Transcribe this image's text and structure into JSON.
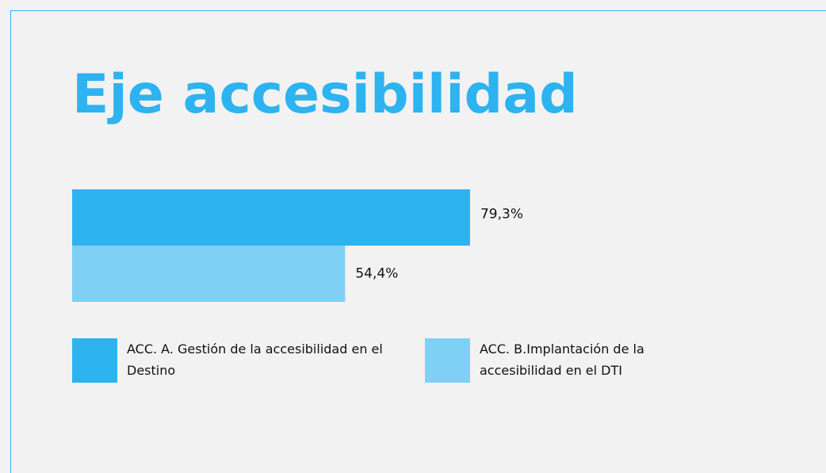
{
  "chart_data": {
    "type": "bar",
    "orientation": "horizontal",
    "title": "Eje accesibilidad",
    "series": [
      {
        "name": "ACC. A. Gestión de la accesibilidad en el Destino",
        "color": "#2db3ef",
        "values": [
          79.3
        ],
        "value_labels": [
          "79,3%"
        ]
      },
      {
        "name": "ACC. B.Implantación de la accesibilidad en el DTI",
        "color": "#80d0f6",
        "values": [
          54.4
        ],
        "value_labels": [
          "54,4%"
        ]
      }
    ]
  }
}
